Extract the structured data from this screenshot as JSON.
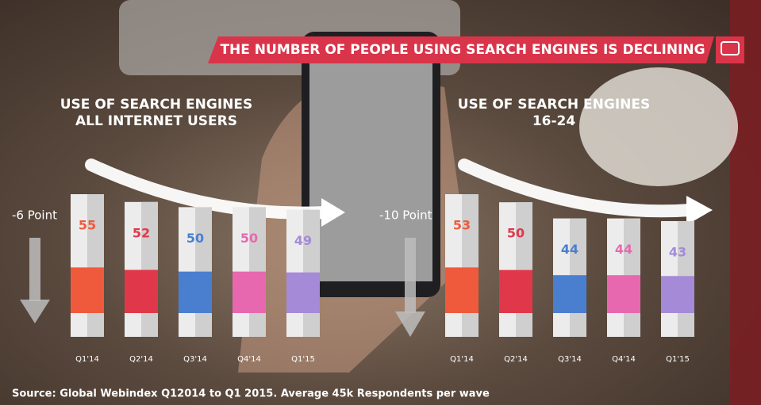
{
  "header": {
    "title": "THE NUMBER OF PEOPLE USING SEARCH ENGINES IS DECLINING"
  },
  "chart_data": [
    {
      "type": "bar",
      "title": "USE OF SEARCH ENGINES\nALL INTERNET USERS",
      "annotation": "-6 Point",
      "categories": [
        "Q1'14",
        "Q2'14",
        "Q3'14",
        "Q4'14",
        "Q1'15"
      ],
      "values": [
        55,
        52,
        50,
        50,
        49
      ],
      "colors": [
        "#f05a3c",
        "#e0384a",
        "#4a7fd0",
        "#e868b0",
        "#a58ad8"
      ]
    },
    {
      "type": "bar",
      "title": "USE OF SEARCH ENGINES\n16-24",
      "annotation": "-10 Point",
      "categories": [
        "Q1'14",
        "Q2'14",
        "Q3'14",
        "Q4'14",
        "Q1'15"
      ],
      "values": [
        53,
        50,
        44,
        44,
        43
      ],
      "colors": [
        "#f05a3c",
        "#e0384a",
        "#4a7fd0",
        "#e868b0",
        "#a58ad8"
      ]
    }
  ],
  "footer": {
    "source": "Source: Global Webindex Q12014 to Q1 2015. Average 45k Respondents per wave"
  }
}
